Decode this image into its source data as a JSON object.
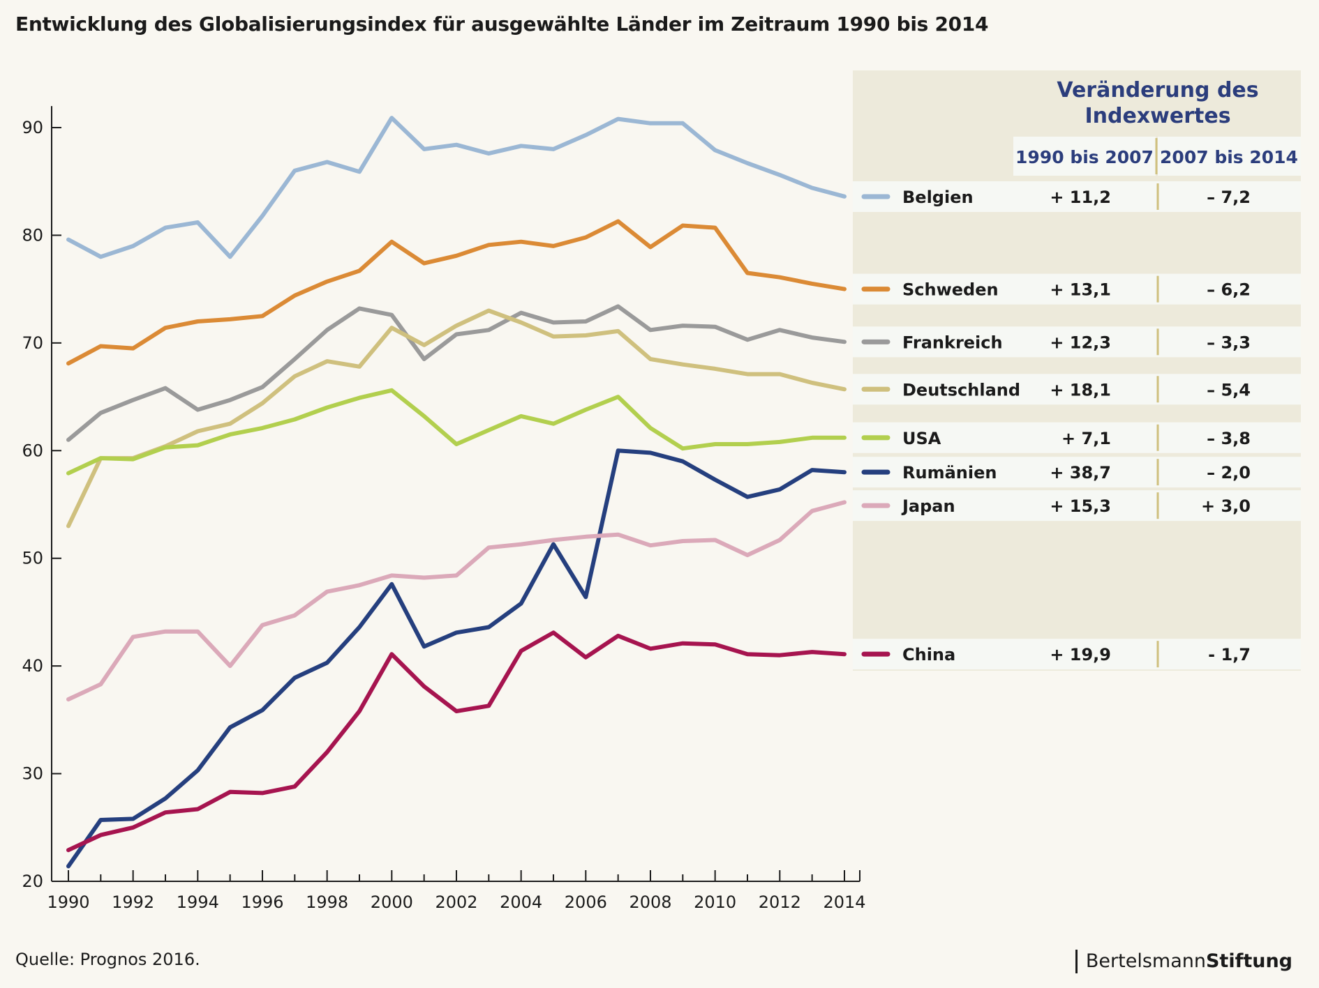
{
  "title": "Entwicklung des Globalisierungsindex für ausgewählte Länder im Zeitraum 1990 bis 2014",
  "source": "Quelle: Prognos 2016.",
  "brand": {
    "part1": "Bertelsmann",
    "part2": "Stiftung"
  },
  "table": {
    "header_title_line1": "Veränderung des",
    "header_title_line2": "Indexwertes",
    "col1": "1990 bis 2007",
    "col2": "2007 bis 2014"
  },
  "chart_data": {
    "type": "line",
    "title": "Entwicklung des Globalisierungsindex für ausgewählte Länder im Zeitraum 1990 bis 2014",
    "xlabel": "",
    "ylabel": "",
    "x": [
      1990,
      1991,
      1992,
      1993,
      1994,
      1995,
      1996,
      1997,
      1998,
      1999,
      2000,
      2001,
      2002,
      2003,
      2004,
      2005,
      2006,
      2007,
      2008,
      2009,
      2010,
      2011,
      2012,
      2013,
      2014
    ],
    "xticks": [
      1990,
      1992,
      1994,
      1996,
      1998,
      2000,
      2002,
      2004,
      2006,
      2008,
      2010,
      2012,
      2014
    ],
    "yticks": [
      20,
      30,
      40,
      50,
      60,
      70,
      80,
      90
    ],
    "ylim": [
      20,
      92
    ],
    "xlim": [
      1990,
      2014
    ],
    "grid": false,
    "legend": "right (table)",
    "series": [
      {
        "name": "Belgien",
        "color": "#9bb7d4",
        "change_1990_2007": "+ 11,2",
        "change_2007_2014": "– 7,2",
        "values": [
          79.6,
          78.0,
          79.0,
          80.7,
          81.2,
          78.0,
          81.8,
          86.0,
          86.8,
          85.9,
          90.9,
          88.0,
          88.4,
          87.6,
          88.3,
          88.0,
          89.3,
          90.8,
          90.4,
          90.4,
          87.9,
          86.7,
          85.6,
          84.4,
          83.6
        ]
      },
      {
        "name": "Schweden",
        "color": "#db8a35",
        "change_1990_2007": "+ 13,1",
        "change_2007_2014": "– 6,2",
        "values": [
          68.1,
          69.7,
          69.5,
          71.4,
          72.0,
          72.2,
          72.5,
          74.4,
          75.7,
          76.7,
          79.4,
          77.4,
          78.1,
          79.1,
          79.4,
          79.0,
          79.8,
          81.3,
          78.9,
          80.9,
          80.7,
          76.5,
          76.1,
          75.5,
          75.0
        ]
      },
      {
        "name": "Frankreich",
        "color": "#9a9a9a",
        "change_1990_2007": "+ 12,3",
        "change_2007_2014": "– 3,3",
        "values": [
          61.0,
          63.5,
          64.7,
          65.8,
          63.8,
          64.7,
          65.9,
          68.5,
          71.2,
          73.2,
          72.6,
          68.5,
          70.8,
          71.2,
          72.8,
          71.9,
          72.0,
          73.4,
          71.2,
          71.6,
          71.5,
          70.3,
          71.2,
          70.5,
          70.1
        ]
      },
      {
        "name": "Deutschland",
        "color": "#cfc07e",
        "change_1990_2007": "+ 18,1",
        "change_2007_2014": "– 5,4",
        "values": [
          53.0,
          59.3,
          59.3,
          60.4,
          61.8,
          62.5,
          64.4,
          66.9,
          68.3,
          67.8,
          71.4,
          69.8,
          71.6,
          73.0,
          71.9,
          70.6,
          70.7,
          71.1,
          68.5,
          68.0,
          67.6,
          67.1,
          67.1,
          66.3,
          65.7
        ]
      },
      {
        "name": "USA",
        "color": "#b2cf4e",
        "change_1990_2007": "+ 7,1",
        "change_2007_2014": "– 3,8",
        "values": [
          57.9,
          59.3,
          59.2,
          60.3,
          60.5,
          61.5,
          62.1,
          62.9,
          64.0,
          64.9,
          65.6,
          63.2,
          60.6,
          61.9,
          63.2,
          62.5,
          63.8,
          65.0,
          62.1,
          60.2,
          60.6,
          60.6,
          60.8,
          61.2,
          61.2
        ]
      },
      {
        "name": "Rumänien",
        "color": "#253f7e",
        "change_1990_2007": "+ 38,7",
        "change_2007_2014": "– 2,0",
        "values": [
          21.4,
          25.7,
          25.8,
          27.7,
          30.3,
          34.3,
          35.9,
          38.9,
          40.3,
          43.6,
          47.6,
          41.8,
          43.1,
          43.6,
          45.8,
          51.3,
          46.4,
          60.0,
          59.8,
          59.0,
          57.3,
          55.7,
          56.4,
          58.2,
          58.0
        ]
      },
      {
        "name": "Japan",
        "color": "#dba9b9",
        "change_1990_2007": "+ 15,3",
        "change_2007_2014": "+ 3,0",
        "values": [
          36.9,
          38.3,
          42.7,
          43.2,
          43.2,
          40.0,
          43.8,
          44.7,
          46.9,
          47.5,
          48.4,
          48.2,
          48.4,
          51.0,
          51.3,
          51.7,
          52.0,
          52.2,
          51.2,
          51.6,
          51.7,
          50.3,
          51.7,
          54.4,
          55.2
        ]
      },
      {
        "name": "China",
        "color": "#a6144f",
        "change_1990_2007": "+ 19,9",
        "change_2007_2014": "- 1,7",
        "values": [
          22.9,
          24.3,
          25.0,
          26.4,
          26.7,
          28.3,
          28.2,
          28.8,
          32.0,
          35.8,
          41.1,
          38.1,
          35.8,
          36.3,
          41.4,
          43.1,
          40.8,
          42.8,
          41.6,
          42.1,
          42.0,
          41.1,
          41.0,
          41.3,
          41.1
        ]
      }
    ]
  }
}
